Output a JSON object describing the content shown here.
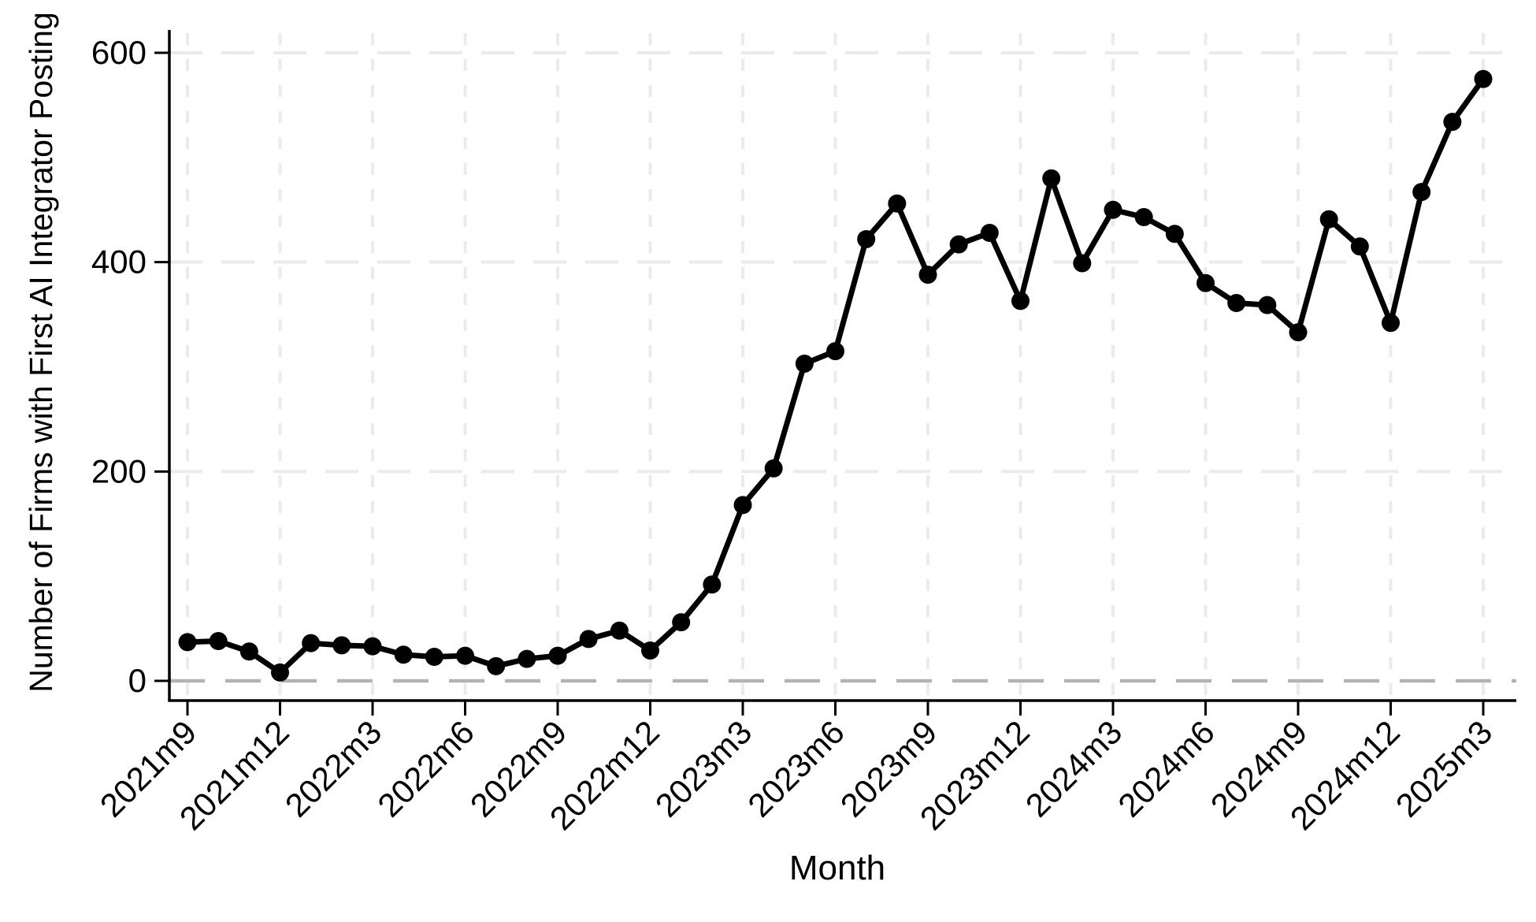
{
  "chart_data": {
    "type": "line",
    "title": "",
    "xlabel": "Month",
    "ylabel": "Number of Firms with First AI Integrator Posting",
    "categories": [
      "2021m9",
      "2021m10",
      "2021m11",
      "2021m12",
      "2022m1",
      "2022m2",
      "2022m3",
      "2022m4",
      "2022m5",
      "2022m6",
      "2022m7",
      "2022m8",
      "2022m9",
      "2022m10",
      "2022m11",
      "2022m12",
      "2023m1",
      "2023m2",
      "2023m3",
      "2023m4",
      "2023m5",
      "2023m6",
      "2023m7",
      "2023m8",
      "2023m9",
      "2023m10",
      "2023m11",
      "2023m12",
      "2024m1",
      "2024m2",
      "2024m3",
      "2024m4",
      "2024m5",
      "2024m6",
      "2024m7",
      "2024m8",
      "2024m9",
      "2024m10",
      "2024m11",
      "2024m12",
      "2025m1",
      "2025m2",
      "2025m3"
    ],
    "values": [
      37,
      38,
      28,
      8,
      36,
      34,
      33,
      25,
      23,
      24,
      14,
      21,
      24,
      40,
      48,
      29,
      56,
      92,
      168,
      203,
      303,
      315,
      422,
      456,
      388,
      417,
      428,
      363,
      480,
      399,
      450,
      443,
      427,
      380,
      361,
      359,
      333,
      441,
      415,
      342,
      467,
      534,
      575
    ],
    "x_tick_labels": [
      "2021m9",
      "2021m12",
      "2022m3",
      "2022m6",
      "2022m9",
      "2022m12",
      "2023m3",
      "2023m6",
      "2023m9",
      "2023m12",
      "2024m3",
      "2024m6",
      "2024m9",
      "2024m12",
      "2025m3"
    ],
    "x_tick_every": 3,
    "y_ticks": [
      0,
      200,
      400,
      600
    ],
    "ylim": [
      0,
      600
    ],
    "grid": "dashed",
    "zero_line": true,
    "legend": "none",
    "colors": {
      "line": "#000000",
      "marker": "#000000",
      "axis": "#000000",
      "grid": "#ebebeb",
      "zero_line": "#b3b3b3",
      "background": "#ffffff"
    }
  }
}
